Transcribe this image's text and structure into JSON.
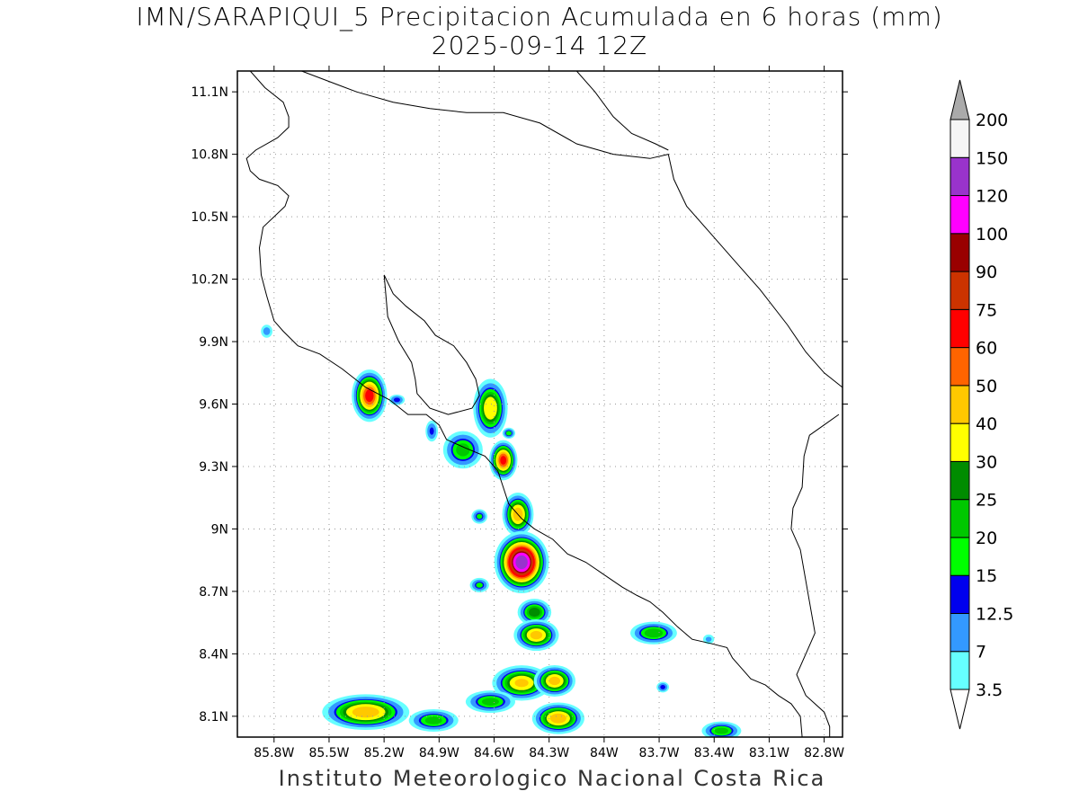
{
  "header": {
    "title_line1": "IMN/SARAPIQUI_5 Precipitacion Acumulada en 6 horas (mm)",
    "title_line2": "2025-09-14 12Z"
  },
  "footer": {
    "credit": "Instituto Meteorologico Nacional Costa Rica"
  },
  "map": {
    "lon_range": [
      -86.0,
      -82.7
    ],
    "lat_range": [
      8.0,
      11.2
    ],
    "lat_ticks": [
      {
        "value": 11.1,
        "label": "11.1N"
      },
      {
        "value": 10.8,
        "label": "10.8N"
      },
      {
        "value": 10.5,
        "label": "10.5N"
      },
      {
        "value": 10.2,
        "label": "10.2N"
      },
      {
        "value": 9.9,
        "label": "9.9N"
      },
      {
        "value": 9.6,
        "label": "9.6N"
      },
      {
        "value": 9.3,
        "label": "9.3N"
      },
      {
        "value": 9.0,
        "label": "9N"
      },
      {
        "value": 8.7,
        "label": "8.7N"
      },
      {
        "value": 8.4,
        "label": "8.4N"
      },
      {
        "value": 8.1,
        "label": "8.1N"
      }
    ],
    "lon_ticks": [
      {
        "value": -85.8,
        "label": "85.8W"
      },
      {
        "value": -85.5,
        "label": "85.5W"
      },
      {
        "value": -85.2,
        "label": "85.2W"
      },
      {
        "value": -84.9,
        "label": "84.9W"
      },
      {
        "value": -84.6,
        "label": "84.6W"
      },
      {
        "value": -84.3,
        "label": "84.3W"
      },
      {
        "value": -84.0,
        "label": "84W"
      },
      {
        "value": -83.7,
        "label": "83.7W"
      },
      {
        "value": -83.4,
        "label": "83.4W"
      },
      {
        "value": -83.1,
        "label": "83.1W"
      },
      {
        "value": -82.8,
        "label": "82.8W"
      }
    ],
    "grid": true,
    "coastline_color": "#000000",
    "coastlines": [
      [
        [
          -85.93,
          11.2
        ],
        [
          -85.85,
          11.12
        ],
        [
          -85.75,
          11.05
        ],
        [
          -85.72,
          10.98
        ],
        [
          -85.72,
          10.93
        ],
        [
          -85.78,
          10.88
        ],
        [
          -85.9,
          10.82
        ],
        [
          -85.95,
          10.78
        ],
        [
          -85.93,
          10.72
        ],
        [
          -85.88,
          10.68
        ],
        [
          -85.78,
          10.65
        ],
        [
          -85.72,
          10.6
        ],
        [
          -85.74,
          10.55
        ],
        [
          -85.8,
          10.5
        ],
        [
          -85.86,
          10.45
        ],
        [
          -85.88,
          10.35
        ],
        [
          -85.87,
          10.22
        ],
        [
          -85.84,
          10.12
        ],
        [
          -85.8,
          10.0
        ],
        [
          -85.75,
          9.95
        ],
        [
          -85.67,
          9.88
        ],
        [
          -85.55,
          9.84
        ],
        [
          -85.43,
          9.77
        ],
        [
          -85.3,
          9.68
        ],
        [
          -85.17,
          9.62
        ],
        [
          -85.07,
          9.55
        ],
        [
          -84.97,
          9.55
        ],
        [
          -84.9,
          9.5
        ],
        [
          -84.86,
          9.43
        ],
        [
          -84.76,
          9.39
        ],
        [
          -84.65,
          9.35
        ],
        [
          -84.58,
          9.28
        ],
        [
          -84.55,
          9.2
        ],
        [
          -84.52,
          9.12
        ],
        [
          -84.45,
          9.05
        ],
        [
          -84.38,
          9.0
        ],
        [
          -84.28,
          8.95
        ],
        [
          -84.2,
          8.88
        ],
        [
          -84.1,
          8.84
        ],
        [
          -84.0,
          8.78
        ],
        [
          -83.9,
          8.72
        ],
        [
          -83.82,
          8.68
        ],
        [
          -83.75,
          8.65
        ],
        [
          -83.68,
          8.6
        ],
        [
          -83.6,
          8.53
        ],
        [
          -83.52,
          8.47
        ],
        [
          -83.42,
          8.45
        ],
        [
          -83.33,
          8.43
        ],
        [
          -83.3,
          8.38
        ],
        [
          -83.25,
          8.33
        ],
        [
          -83.2,
          8.28
        ],
        [
          -83.12,
          8.25
        ],
        [
          -83.05,
          8.2
        ],
        [
          -82.98,
          8.16
        ],
        [
          -82.93,
          8.1
        ],
        [
          -82.92,
          8.0
        ]
      ],
      [
        [
          -85.2,
          10.22
        ],
        [
          -85.15,
          10.13
        ],
        [
          -85.08,
          10.07
        ],
        [
          -84.98,
          10.0
        ],
        [
          -84.92,
          9.93
        ],
        [
          -84.82,
          9.88
        ],
        [
          -84.75,
          9.8
        ],
        [
          -84.7,
          9.72
        ],
        [
          -84.68,
          9.64
        ],
        [
          -84.72,
          9.58
        ],
        [
          -84.85,
          9.55
        ],
        [
          -84.95,
          9.58
        ],
        [
          -85.02,
          9.65
        ],
        [
          -85.03,
          9.72
        ],
        [
          -85.05,
          9.8
        ],
        [
          -85.12,
          9.9
        ],
        [
          -85.18,
          10.02
        ],
        [
          -85.2,
          10.22
        ]
      ],
      [
        [
          -82.77,
          8.0
        ],
        [
          -82.77,
          8.05
        ],
        [
          -82.8,
          8.12
        ],
        [
          -82.9,
          8.2
        ],
        [
          -82.95,
          8.3
        ],
        [
          -82.9,
          8.4
        ],
        [
          -82.85,
          8.5
        ],
        [
          -82.87,
          8.6
        ],
        [
          -82.9,
          8.75
        ],
        [
          -82.93,
          8.9
        ],
        [
          -82.98,
          9.0
        ],
        [
          -82.97,
          9.1
        ],
        [
          -82.92,
          9.2
        ],
        [
          -82.91,
          9.35
        ],
        [
          -82.88,
          9.45
        ],
        [
          -82.8,
          9.5
        ],
        [
          -82.72,
          9.55
        ]
      ],
      [
        [
          -85.65,
          11.2
        ],
        [
          -85.5,
          11.15
        ],
        [
          -85.35,
          11.1
        ],
        [
          -85.15,
          11.05
        ],
        [
          -84.95,
          11.02
        ],
        [
          -84.75,
          11.0
        ],
        [
          -84.55,
          11.0
        ],
        [
          -84.35,
          10.95
        ],
        [
          -84.15,
          10.85
        ],
        [
          -83.95,
          10.8
        ],
        [
          -83.75,
          10.78
        ],
        [
          -83.65,
          10.8
        ],
        [
          -83.62,
          10.68
        ],
        [
          -83.55,
          10.55
        ],
        [
          -83.42,
          10.42
        ],
        [
          -83.3,
          10.3
        ],
        [
          -83.15,
          10.15
        ],
        [
          -83.0,
          9.98
        ],
        [
          -82.9,
          9.85
        ],
        [
          -82.8,
          9.75
        ],
        [
          -82.7,
          9.68
        ]
      ],
      [
        [
          -84.15,
          11.2
        ],
        [
          -84.05,
          11.1
        ],
        [
          -83.95,
          10.98
        ],
        [
          -83.85,
          10.9
        ],
        [
          -83.72,
          10.85
        ],
        [
          -83.65,
          10.82
        ]
      ]
    ]
  },
  "chart_data": {
    "type": "heatmap",
    "variable": "Precipitacion Acumulada en 6 horas (mm)",
    "valid_time": "2025-09-14 12Z",
    "colorbar": {
      "levels": [
        3.5,
        7,
        12.5,
        15,
        20,
        25,
        30,
        40,
        50,
        60,
        75,
        90,
        100,
        120,
        150,
        200
      ],
      "colors": [
        "#66ffff",
        "#3399ff",
        "#0000ee",
        "#00ff00",
        "#00c800",
        "#008c00",
        "#ffff00",
        "#ffc800",
        "#ff6400",
        "#ff0000",
        "#cc3300",
        "#990000",
        "#ff00ff",
        "#9933cc",
        "#f5f5f5"
      ],
      "over_color": "#aaaaaa"
    },
    "cells": [
      {
        "lon": -85.28,
        "lat": 9.64,
        "rx": 0.1,
        "ry": 0.13,
        "peak": 62
      },
      {
        "lon": -85.13,
        "lat": 9.62,
        "rx": 0.05,
        "ry": 0.03,
        "peak": 14
      },
      {
        "lon": -84.62,
        "lat": 9.58,
        "rx": 0.1,
        "ry": 0.15,
        "peak": 38
      },
      {
        "lon": -84.77,
        "lat": 9.38,
        "rx": 0.12,
        "ry": 0.1,
        "peak": 22
      },
      {
        "lon": -84.55,
        "lat": 9.33,
        "rx": 0.08,
        "ry": 0.1,
        "peak": 60
      },
      {
        "lon": -84.47,
        "lat": 9.07,
        "rx": 0.09,
        "ry": 0.11,
        "peak": 45
      },
      {
        "lon": -84.45,
        "lat": 8.84,
        "rx": 0.15,
        "ry": 0.15,
        "peak": 125
      },
      {
        "lon": -84.38,
        "lat": 8.6,
        "rx": 0.1,
        "ry": 0.07,
        "peak": 28
      },
      {
        "lon": -84.37,
        "lat": 8.49,
        "rx": 0.13,
        "ry": 0.08,
        "peak": 42
      },
      {
        "lon": -84.45,
        "lat": 8.26,
        "rx": 0.17,
        "ry": 0.09,
        "peak": 40
      },
      {
        "lon": -84.27,
        "lat": 8.27,
        "rx": 0.12,
        "ry": 0.08,
        "peak": 42
      },
      {
        "lon": -84.25,
        "lat": 8.09,
        "rx": 0.15,
        "ry": 0.08,
        "peak": 45
      },
      {
        "lon": -85.3,
        "lat": 8.12,
        "rx": 0.25,
        "ry": 0.09,
        "peak": 45
      },
      {
        "lon": -84.93,
        "lat": 8.08,
        "rx": 0.15,
        "ry": 0.06,
        "peak": 22
      },
      {
        "lon": -84.62,
        "lat": 8.17,
        "rx": 0.15,
        "ry": 0.06,
        "peak": 22
      },
      {
        "lon": -83.73,
        "lat": 8.5,
        "rx": 0.14,
        "ry": 0.06,
        "peak": 24
      },
      {
        "lon": -83.36,
        "lat": 8.03,
        "rx": 0.12,
        "ry": 0.05,
        "peak": 22
      },
      {
        "lon": -85.84,
        "lat": 9.95,
        "rx": 0.04,
        "ry": 0.04,
        "peak": 9
      },
      {
        "lon": -84.52,
        "lat": 9.46,
        "rx": 0.04,
        "ry": 0.03,
        "peak": 18
      },
      {
        "lon": -83.43,
        "lat": 8.47,
        "rx": 0.04,
        "ry": 0.03,
        "peak": 8
      },
      {
        "lon": -83.68,
        "lat": 8.24,
        "rx": 0.04,
        "ry": 0.03,
        "peak": 14
      },
      {
        "lon": -84.68,
        "lat": 8.73,
        "rx": 0.06,
        "ry": 0.04,
        "peak": 16
      },
      {
        "lon": -84.94,
        "lat": 9.47,
        "rx": 0.04,
        "ry": 0.06,
        "peak": 13
      },
      {
        "lon": -84.68,
        "lat": 9.06,
        "rx": 0.05,
        "ry": 0.04,
        "peak": 16
      }
    ]
  }
}
